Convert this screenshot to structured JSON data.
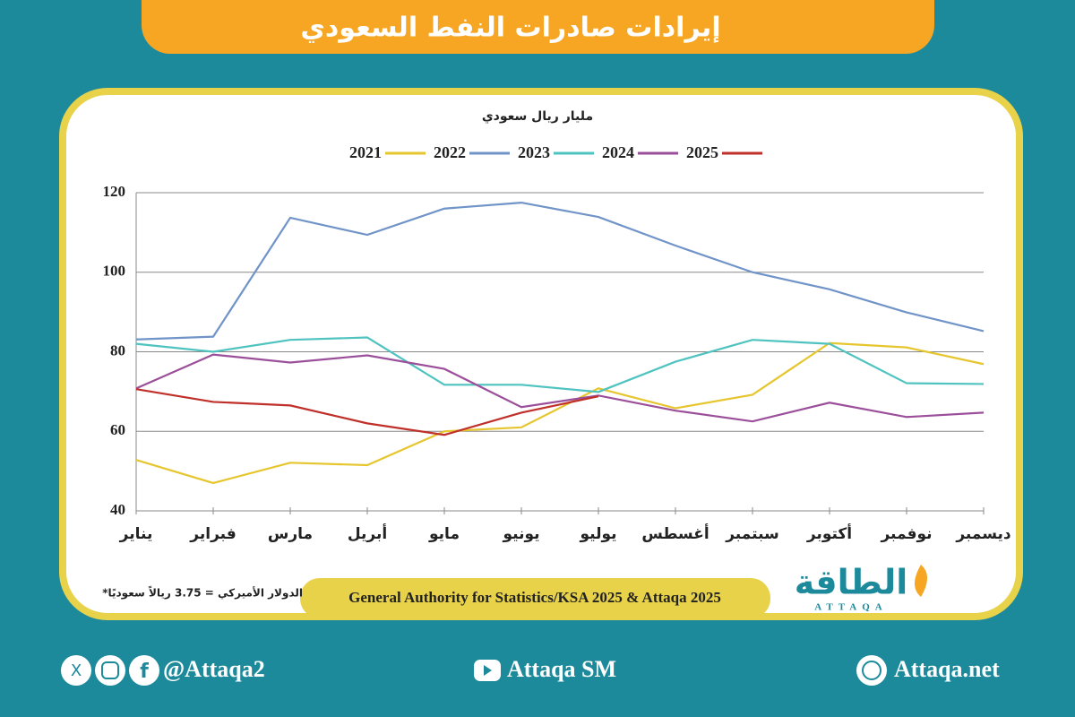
{
  "header": {
    "title": "إيرادات صادرات النفط السعودي"
  },
  "chart_data": {
    "type": "line",
    "y_axis_label": "مليار ريال سعودي",
    "categories": [
      "يناير",
      "فبراير",
      "مارس",
      "أبريل",
      "مايو",
      "يونيو",
      "يوليو",
      "أغسطس",
      "سبتمبر",
      "أكتوبر",
      "نوفمبر",
      "ديسمبر"
    ],
    "series": [
      {
        "name": "2021",
        "color": "#e6c62e",
        "values": [
          52.8,
          47,
          52.1,
          51.5,
          60,
          61,
          70.8,
          65.8,
          69.2,
          82.2,
          81.1,
          76.9
        ]
      },
      {
        "name": "2022",
        "color": "#7093c8",
        "values": [
          83.1,
          83.8,
          113.7,
          109.4,
          116,
          117.5,
          113.9,
          106.7,
          100,
          95.7,
          89.9,
          85.2
        ]
      },
      {
        "name": "2023",
        "color": "#4fc3c0",
        "values": [
          82,
          80,
          83,
          83.6,
          71.7,
          71.7,
          69.9,
          77.5,
          83,
          82,
          72.1,
          71.9
        ]
      },
      {
        "name": "2024",
        "color": "#9b4f9a",
        "values": [
          70.8,
          79.3,
          77.3,
          79.1,
          75.7,
          66.1,
          69,
          65.2,
          62.5,
          67.2,
          63.6,
          64.7
        ]
      },
      {
        "name": "2025",
        "color": "#c0302a",
        "values": [
          70.6,
          67.4,
          66.5,
          62,
          59.1,
          64.7,
          68.8,
          null,
          null,
          null,
          null,
          null
        ]
      }
    ],
    "ylim": [
      40,
      120
    ],
    "yticks": [
      40,
      60,
      80,
      100,
      120
    ],
    "grid": true
  },
  "footer": {
    "note": "*الدولار الأميركي = 3.75 ريالاً سعوديًا",
    "source": "General Authority for Statistics/KSA 2025 & Attaqa 2025",
    "logo": "الطاقة",
    "logo_latin": "ATTAQA",
    "handle": "@Attaqa2",
    "youtube": "Attaqa SM",
    "website": "Attaqa.net"
  }
}
